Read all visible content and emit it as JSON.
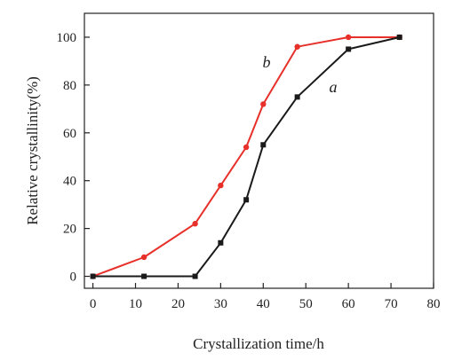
{
  "chart_data": {
    "type": "line",
    "xlabel": "Crystallization time/h",
    "ylabel": "Relative crystallinity(%)",
    "xlim": [
      -2,
      80
    ],
    "ylim": [
      -5,
      110
    ],
    "xticks": [
      0,
      10,
      20,
      30,
      40,
      50,
      60,
      70,
      80
    ],
    "yticks": [
      0,
      20,
      40,
      60,
      80,
      100
    ],
    "grid": false,
    "series": [
      {
        "name": "a",
        "color": "#1a1a1a",
        "marker": "square",
        "x": [
          0,
          12,
          24,
          30,
          36,
          40,
          48,
          60,
          72
        ],
        "y": [
          0,
          0,
          0,
          14,
          32,
          55,
          75,
          95,
          100
        ]
      },
      {
        "name": "b",
        "color": "#e8302a",
        "marker": "circle",
        "x": [
          0,
          12,
          24,
          30,
          36,
          40,
          48,
          60,
          72
        ],
        "y": [
          0,
          8,
          22,
          38,
          54,
          72,
          96,
          100,
          100
        ]
      }
    ]
  }
}
